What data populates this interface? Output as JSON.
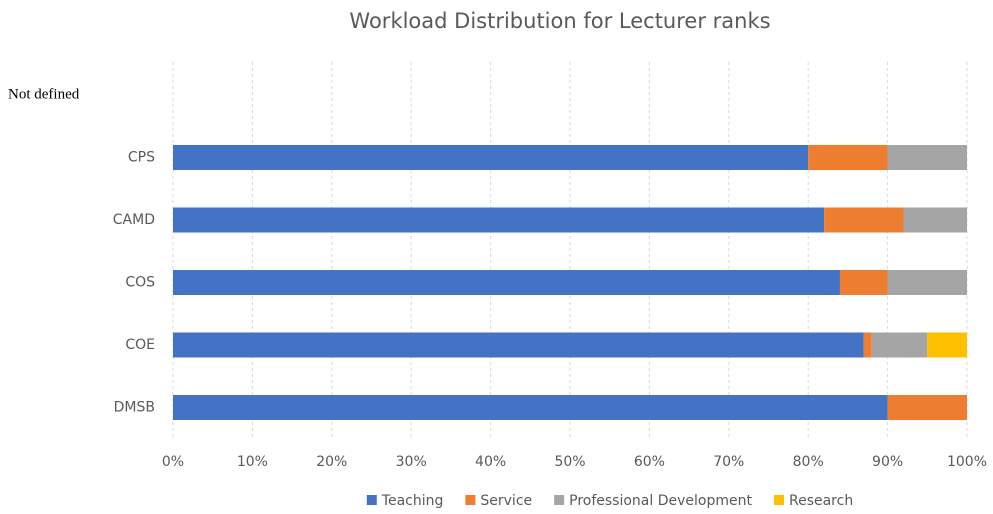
{
  "chart_data": {
    "type": "stacked_barh",
    "title": "Workload Distribution for Lecturer ranks",
    "categories": [
      "Not defined",
      "CPS",
      "CAMD",
      "COS",
      "COE",
      "DMSB"
    ],
    "series": [
      {
        "name": "Teaching",
        "color": "#4472c4",
        "values": [
          null,
          80,
          82,
          84,
          87,
          90
        ]
      },
      {
        "name": "Service",
        "color": "#ed7d31",
        "values": [
          null,
          10,
          10,
          6,
          1,
          10
        ]
      },
      {
        "name": "Professional Development",
        "color": "#a5a5a5",
        "values": [
          null,
          10,
          8,
          10,
          7,
          0
        ]
      },
      {
        "name": "Research",
        "color": "#ffc000",
        "values": [
          null,
          0,
          0,
          0,
          5,
          0
        ]
      }
    ],
    "xlim": [
      0,
      100
    ],
    "xticks": [
      {
        "value": 0,
        "label": "0%"
      },
      {
        "value": 10,
        "label": "10%"
      },
      {
        "value": 20,
        "label": "20%"
      },
      {
        "value": 30,
        "label": "30%"
      },
      {
        "value": 40,
        "label": "40%"
      },
      {
        "value": 50,
        "label": "50%"
      },
      {
        "value": 60,
        "label": "60%"
      },
      {
        "value": 70,
        "label": "70%"
      },
      {
        "value": 80,
        "label": "80%"
      },
      {
        "value": 90,
        "label": "90%"
      },
      {
        "value": 100,
        "label": "100%"
      }
    ],
    "grid": true,
    "legend": "bottom"
  }
}
